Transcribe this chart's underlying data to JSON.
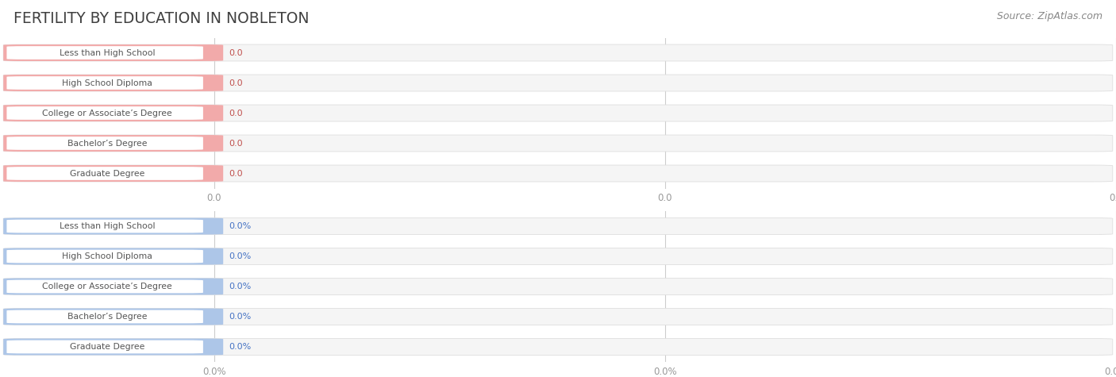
{
  "title": "FERTILITY BY EDUCATION IN NOBLETON",
  "source": "Source: ZipAtlas.com",
  "categories": [
    "Less than High School",
    "High School Diploma",
    "College or Associate’s Degree",
    "Bachelor’s Degree",
    "Graduate Degree"
  ],
  "top_values": [
    0.0,
    0.0,
    0.0,
    0.0,
    0.0
  ],
  "bottom_values": [
    0.0,
    0.0,
    0.0,
    0.0,
    0.0
  ],
  "top_bar_color": "#f2aaaa",
  "top_bar_bg": "#f5f5f5",
  "top_label_bg": "#ffffff",
  "top_value_color": "#c0504d",
  "bottom_bar_color": "#adc6e8",
  "bottom_bar_bg": "#f5f5f5",
  "bottom_label_bg": "#ffffff",
  "bottom_value_color": "#4472c4",
  "background_color": "#ffffff",
  "grid_color": "#cccccc",
  "title_color": "#404040",
  "label_color": "#555555",
  "source_color": "#888888",
  "tick_color": "#999999"
}
